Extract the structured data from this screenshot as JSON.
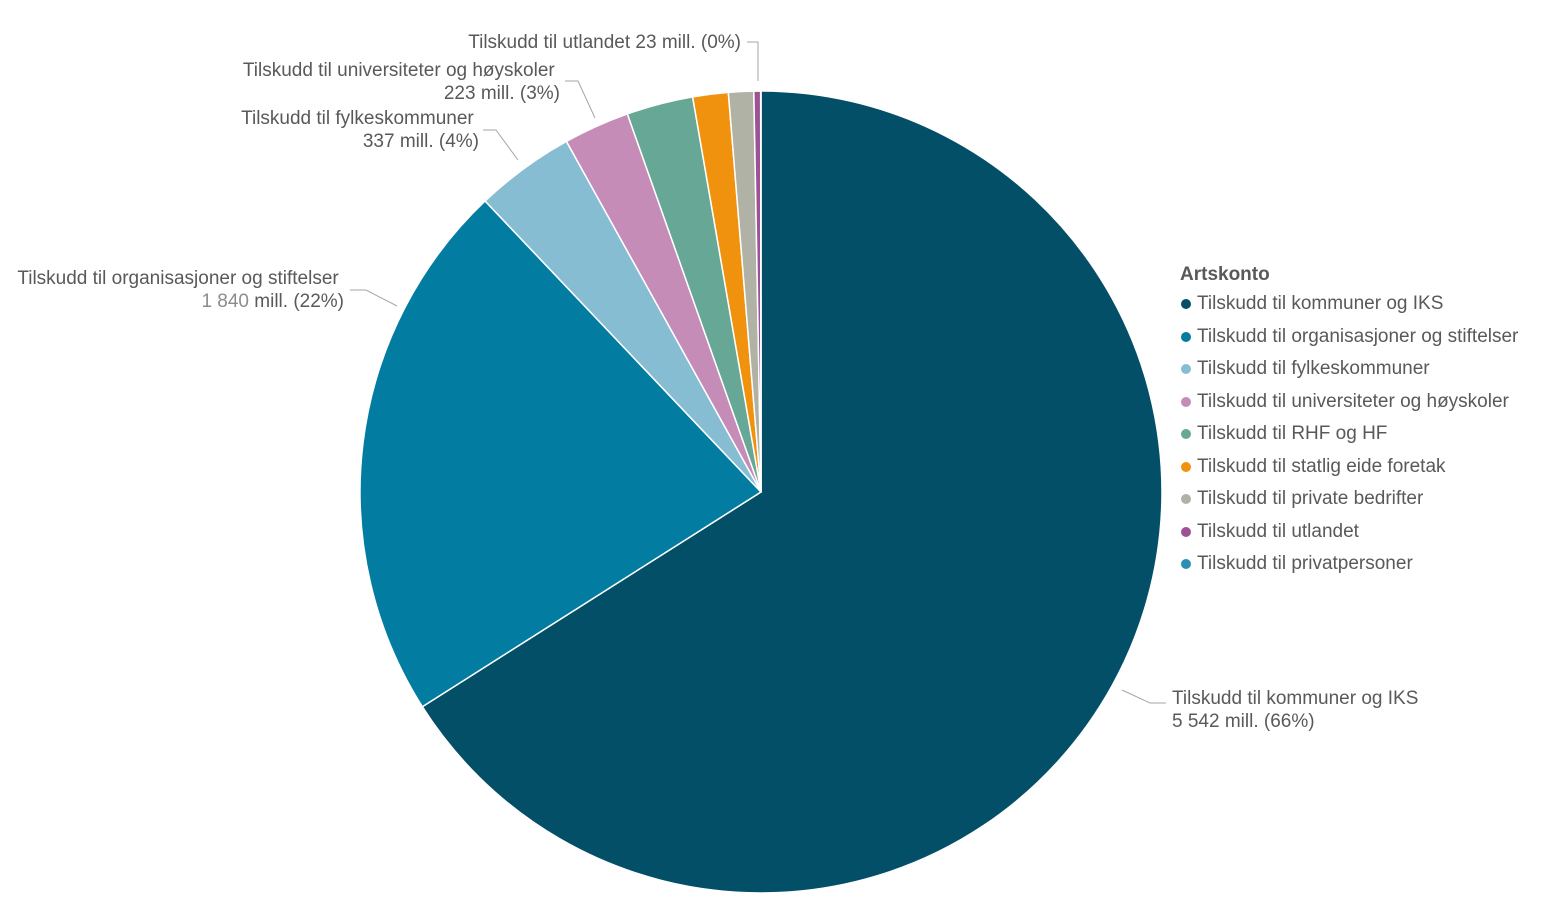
{
  "chart_data": {
    "type": "pie",
    "title": "",
    "legend_title": "Artskonto",
    "legend_position": "right",
    "unit": "mill.",
    "slices": [
      {
        "name": "Tilskudd til kommuner og IKS",
        "value": 5542,
        "display_value": "5 542",
        "percent": "66%",
        "color": "#034f67",
        "label_line1": "Tilskudd til kommuner og IKS",
        "label_line2": "5 542 mill. (66%)"
      },
      {
        "name": "Tilskudd til organisasjoner og stiftelser",
        "value": 1840,
        "display_value": "1 840",
        "percent": "22%",
        "color": "#027ca1",
        "label_line1": "Tilskudd til organisasjoner og stiftelser",
        "label_line2_num": "1 840",
        "label_line2_rest": "mill. (22%)"
      },
      {
        "name": "Tilskudd til fylkeskommuner",
        "value": 337,
        "display_value": "337",
        "percent": "4%",
        "color": "#87bdd2",
        "label_line1": "Tilskudd til fylkeskommuner",
        "label_line2": "337 mill. (4%)"
      },
      {
        "name": "Tilskudd til universiteter og høyskoler",
        "value": 223,
        "display_value": "223",
        "percent": "3%",
        "color": "#c58cb8",
        "label_line1": "Tilskudd til universiteter og høyskoler",
        "label_line2": "223 mill. (3%)"
      },
      {
        "name": "Tilskudd til RHF og HF",
        "value": 225,
        "color": "#67a795"
      },
      {
        "name": "Tilskudd til statlig eide foretak",
        "value": 120,
        "color": "#f0920e"
      },
      {
        "name": "Tilskudd til private bedrifter",
        "value": 85,
        "color": "#b0b2a6"
      },
      {
        "name": "Tilskudd til utlandet",
        "value": 23,
        "display_value": "23",
        "percent": "0%",
        "color": "#9e5296",
        "label_line1": "Tilskudd til utlandet 23 mill. (0%)"
      },
      {
        "name": "Tilskudd til privatpersoner",
        "value": 1,
        "color": "#2a8fb3"
      }
    ]
  }
}
